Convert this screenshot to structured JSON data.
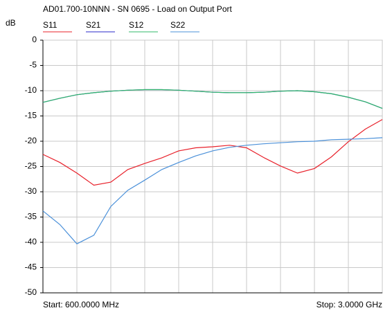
{
  "chart_data": {
    "type": "line",
    "title": "AD01.700-10NNN - SN 0695 - Load on Output Port",
    "ylabel": "dB",
    "start_label": "Start: 600.0000 MHz",
    "stop_label": "Stop: 3.0000 GHz",
    "x": [
      600,
      720,
      840,
      960,
      1080,
      1200,
      1320,
      1440,
      1560,
      1680,
      1800,
      1920,
      2040,
      2160,
      2280,
      2400,
      2520,
      2640,
      2760,
      2880,
      3000
    ],
    "xlim": [
      600,
      3000
    ],
    "xticks": [
      840,
      1080,
      1320,
      1560,
      1800,
      2040,
      2280,
      2520,
      2760
    ],
    "ylim": [
      -50,
      0
    ],
    "yticks": [
      0,
      -5,
      -10,
      -15,
      -20,
      -25,
      -30,
      -35,
      -40,
      -45,
      -50
    ],
    "grid": true,
    "series": [
      {
        "name": "S11",
        "color": "#e8202a",
        "values": [
          -22.6,
          -24.2,
          -26.3,
          -28.7,
          -28.1,
          -25.6,
          -24.4,
          -23.3,
          -21.9,
          -21.3,
          -21.1,
          -20.8,
          -21.3,
          -23.2,
          -24.9,
          -26.3,
          -25.4,
          -23.1,
          -20.1,
          -17.6,
          -15.7
        ]
      },
      {
        "name": "S21",
        "color": "#2a2ac8",
        "values": [
          -12.3,
          -11.5,
          -10.8,
          -10.4,
          -10.1,
          -9.9,
          -9.8,
          -9.8,
          -9.9,
          -10.1,
          -10.3,
          -10.4,
          -10.4,
          -10.3,
          -10.1,
          -10.0,
          -10.2,
          -10.6,
          -11.3,
          -12.2,
          -13.5
        ]
      },
      {
        "name": "S12",
        "color": "#30b868",
        "values": [
          -12.3,
          -11.5,
          -10.8,
          -10.4,
          -10.1,
          -9.9,
          -9.8,
          -9.8,
          -9.9,
          -10.1,
          -10.3,
          -10.4,
          -10.4,
          -10.3,
          -10.1,
          -10.0,
          -10.2,
          -10.6,
          -11.3,
          -12.2,
          -13.5
        ]
      },
      {
        "name": "S22",
        "color": "#4a90d9",
        "values": [
          -33.8,
          -36.5,
          -40.3,
          -38.6,
          -32.9,
          -29.7,
          -27.7,
          -25.6,
          -24.2,
          -22.9,
          -21.9,
          -21.2,
          -20.8,
          -20.5,
          -20.3,
          -20.1,
          -20.0,
          -19.7,
          -19.6,
          -19.5,
          -19.3
        ]
      }
    ]
  }
}
